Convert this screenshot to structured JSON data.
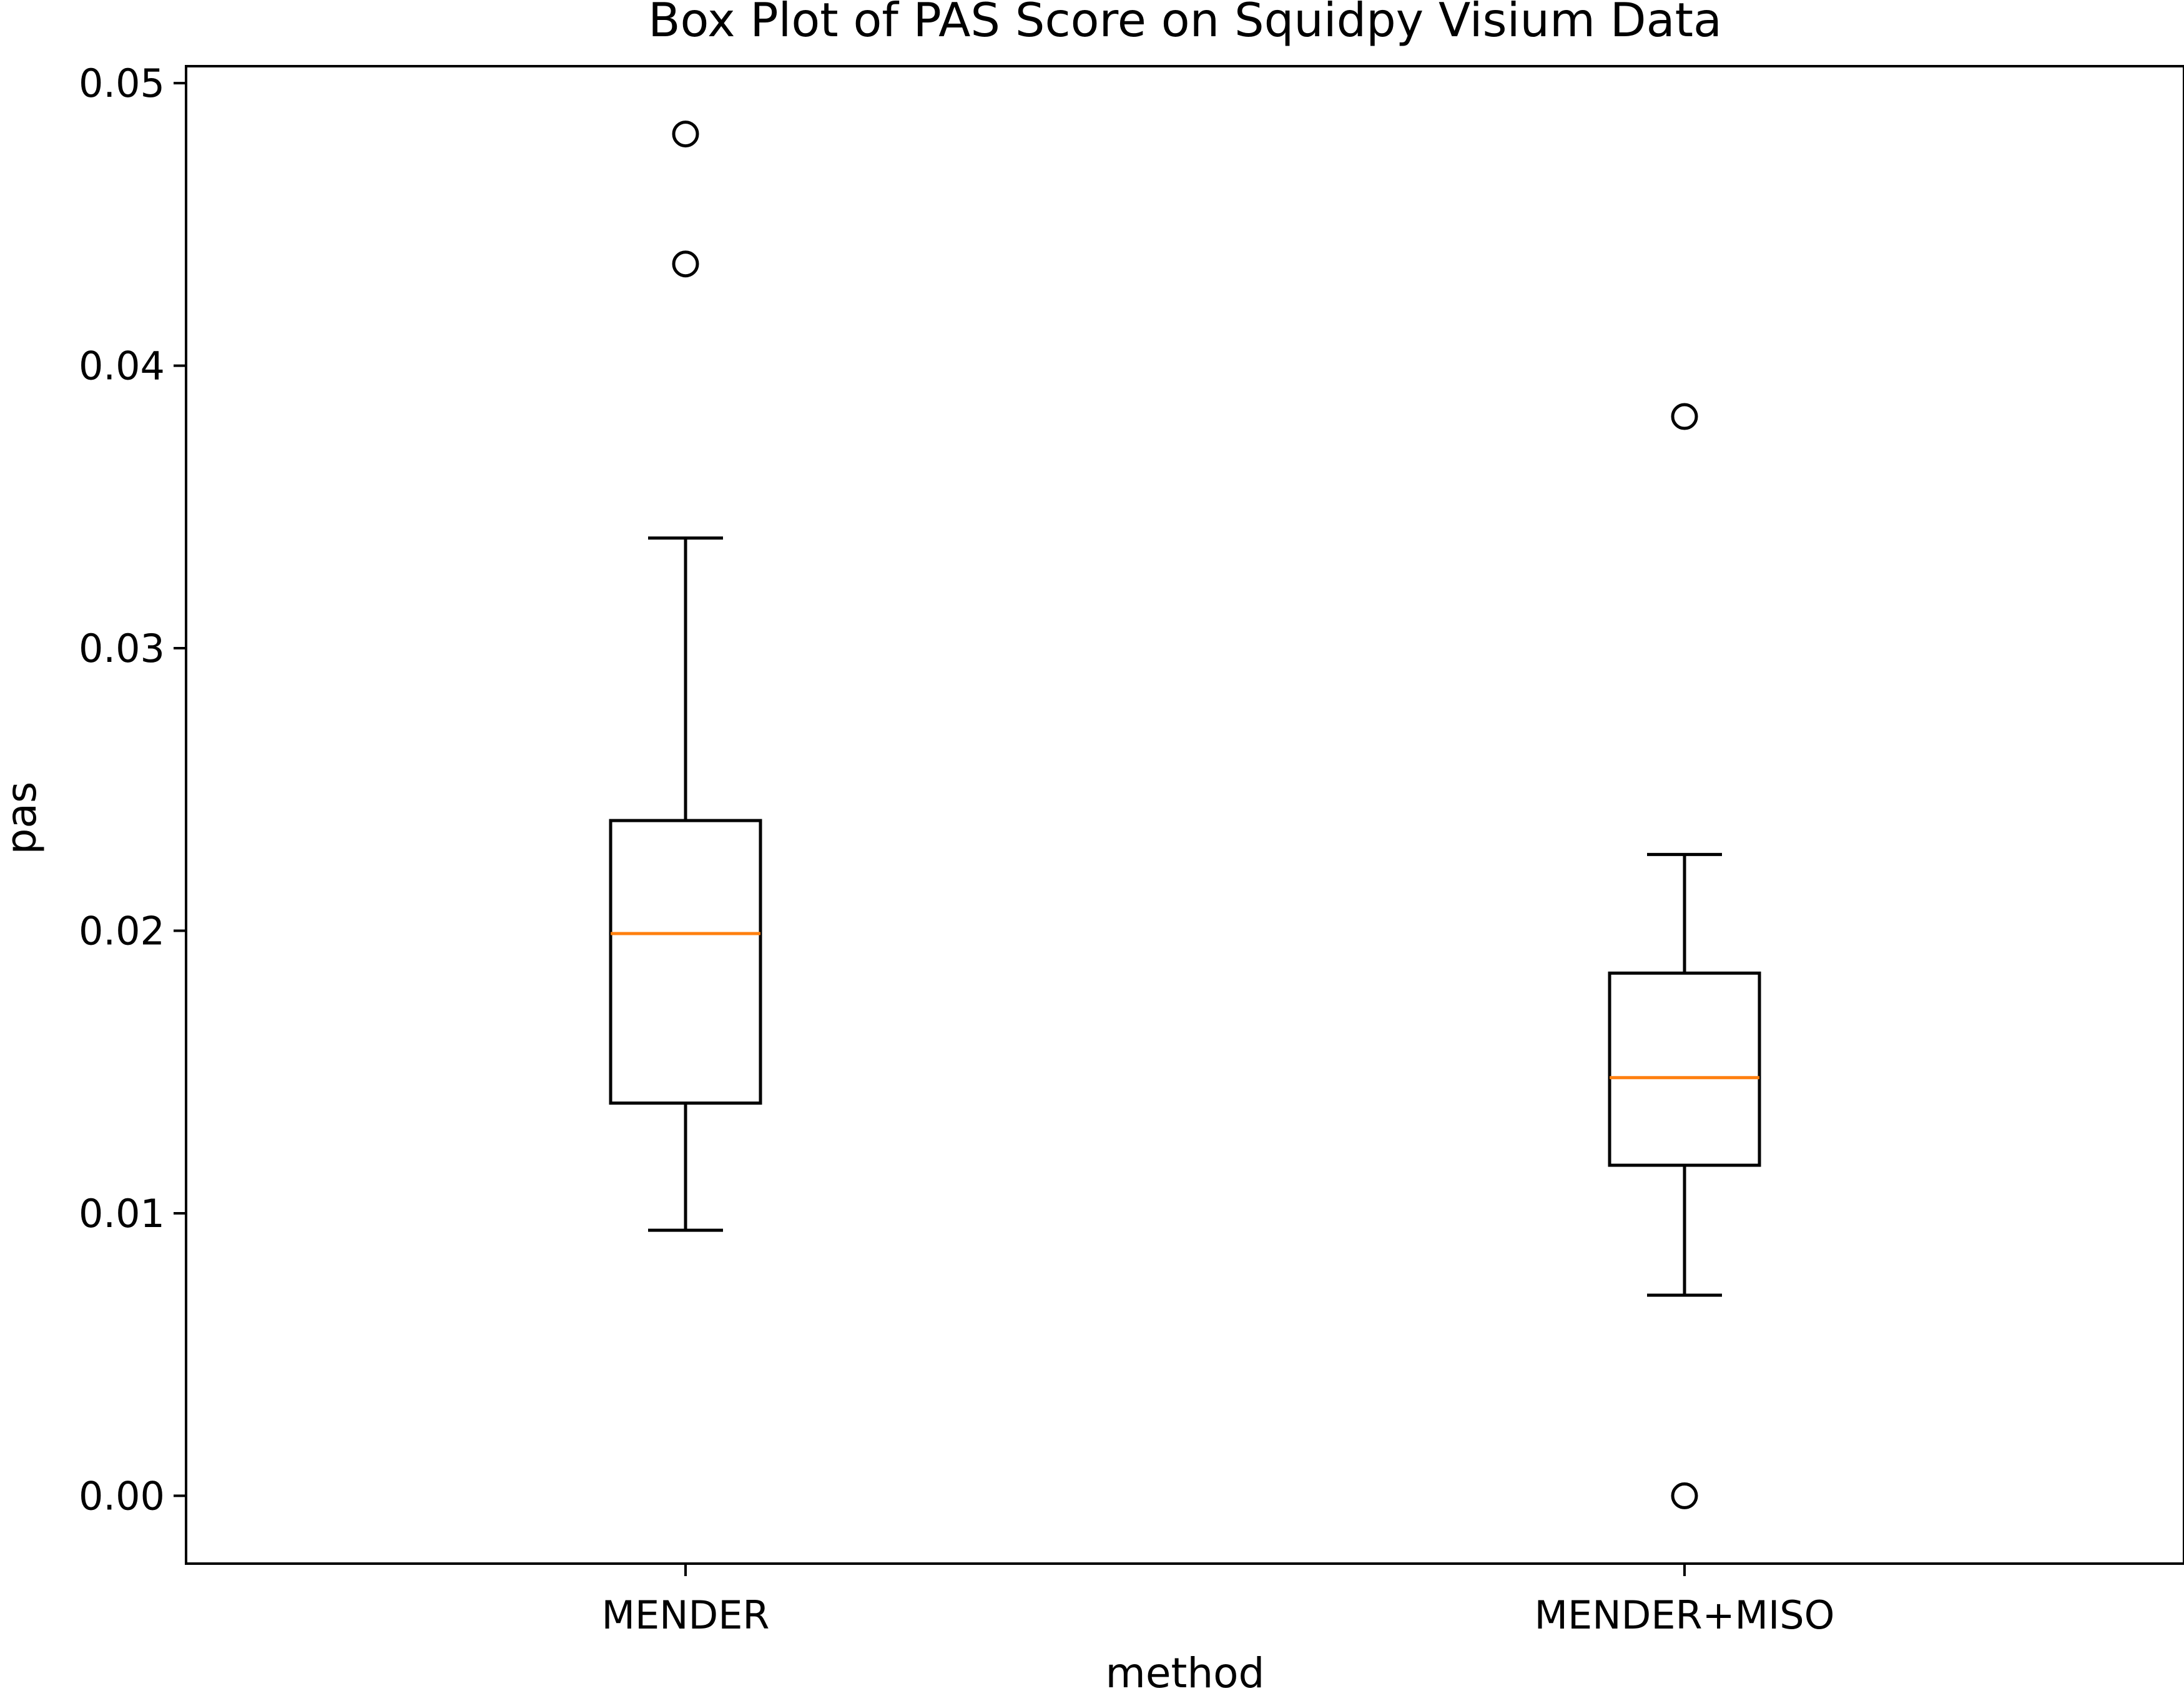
{
  "chart_data": {
    "type": "box",
    "title": "Box Plot of PAS Score on Squidpy Visium Data",
    "xlabel": "method",
    "ylabel": "pas",
    "ylim": [
      -0.0024,
      0.0506
    ],
    "yticks": [
      0.0,
      0.01,
      0.02,
      0.03,
      0.04,
      0.05
    ],
    "ytick_labels": [
      "0.00",
      "0.01",
      "0.02",
      "0.03",
      "0.04",
      "0.05"
    ],
    "categories": [
      "MENDER",
      "MENDER+MISO"
    ],
    "boxes": [
      {
        "name": "MENDER",
        "whisker_low": 0.0094,
        "q1": 0.0139,
        "median": 0.0199,
        "q3": 0.0239,
        "whisker_high": 0.0339,
        "outliers": [
          0.0482,
          0.0436
        ]
      },
      {
        "name": "MENDER+MISO",
        "whisker_low": 0.0071,
        "q1": 0.0117,
        "median": 0.0148,
        "q3": 0.0185,
        "whisker_high": 0.0227,
        "outliers": [
          0.0382,
          0.0
        ]
      }
    ],
    "grid": false,
    "colors": {
      "box": "#000000",
      "median": "#ff7f0e",
      "outlier": "#000000"
    }
  }
}
